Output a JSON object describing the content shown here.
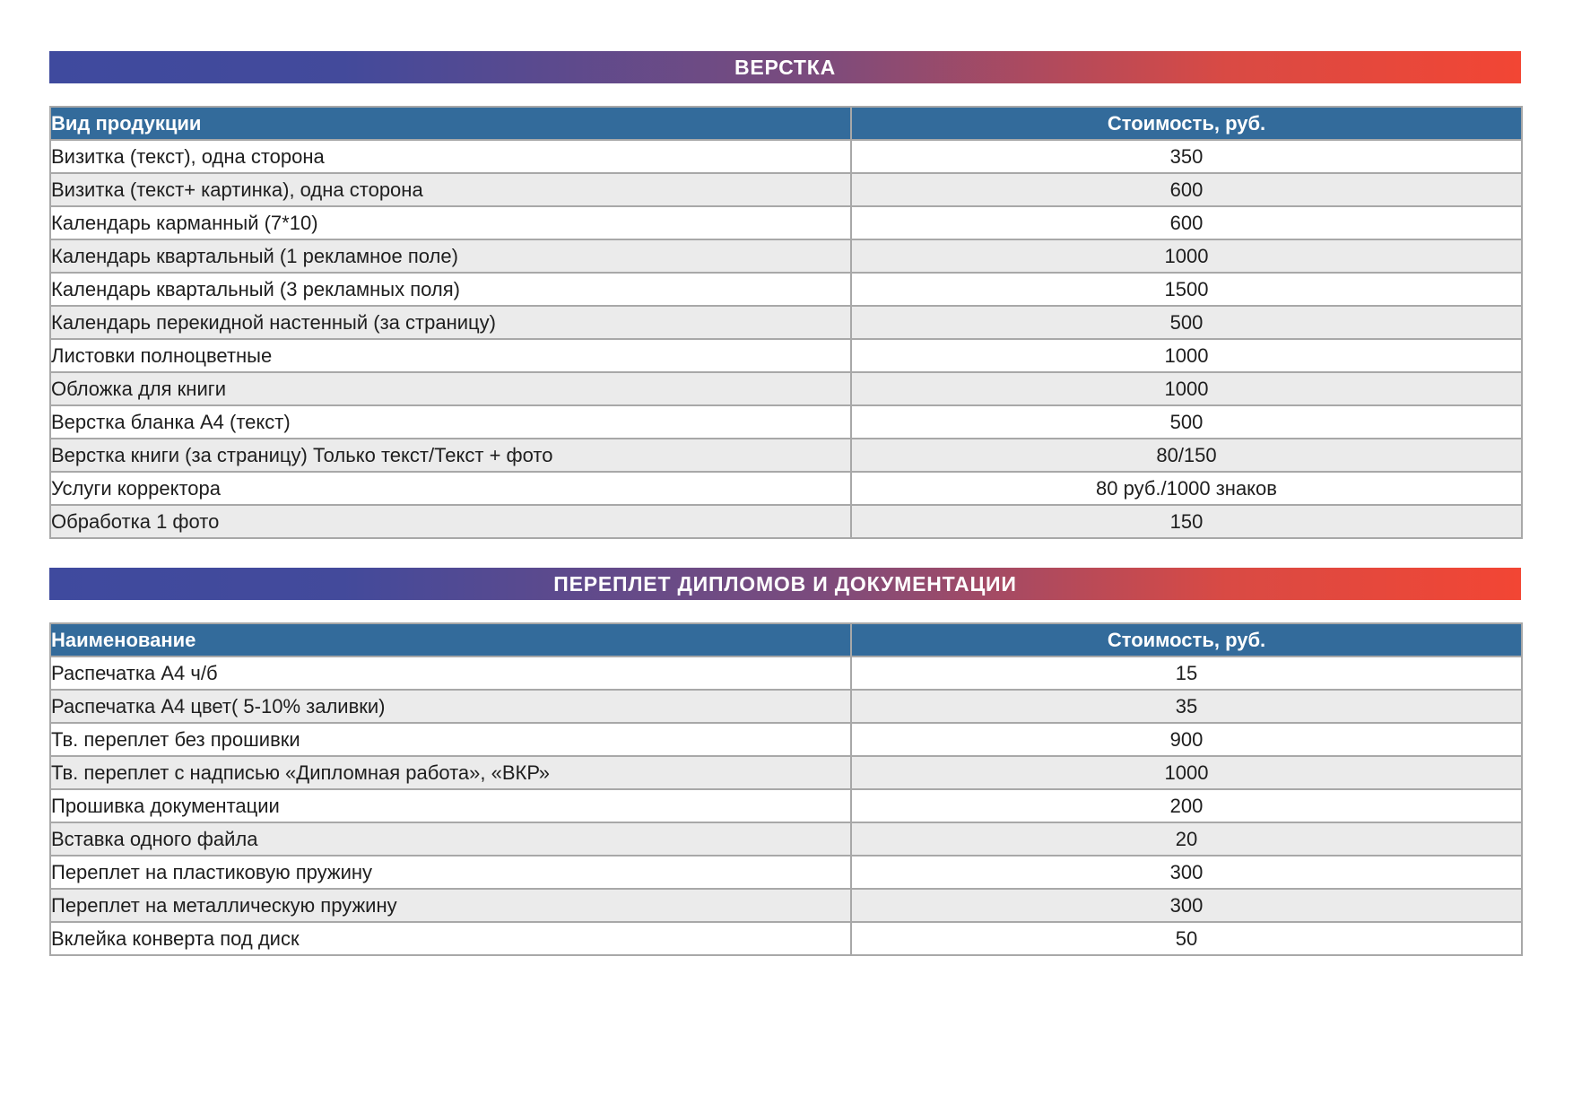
{
  "colors": {
    "banner_gradient_left": "#3f4a9e",
    "banner_gradient_mid": "#7b4b7d",
    "banner_gradient_right": "#f24634",
    "table_header_bg": "#336b9b",
    "row_bg": "#ffffff",
    "row_alt_bg": "#ebebeb",
    "border": "#a8a8a8",
    "header_text": "#ffffff",
    "body_text": "#1e1e1e"
  },
  "sections": [
    {
      "banner": "ВЕРСТКА",
      "columns": {
        "name": "Вид продукции",
        "price": "Стоимость, руб."
      },
      "rows": [
        {
          "name": "Визитка (текст), одна сторона",
          "price": "350"
        },
        {
          "name": "Визитка (текст+ картинка), одна сторона",
          "price": "600"
        },
        {
          "name": "Календарь карманный (7*10)",
          "price": "600"
        },
        {
          "name": "Календарь квартальный (1 рекламное поле)",
          "price": "1000"
        },
        {
          "name": "Календарь квартальный (3 рекламных поля)",
          "price": "1500"
        },
        {
          "name": "Календарь перекидной настенный (за страницу)",
          "price": "500"
        },
        {
          "name": "Листовки полноцветные",
          "price": "1000"
        },
        {
          "name": "Обложка для книги",
          "price": "1000"
        },
        {
          "name": "Верстка бланка А4 (текст)",
          "price": "500"
        },
        {
          "name": "Верстка книги (за страницу) Только текст/Текст + фото",
          "price": "80/150"
        },
        {
          "name": "Услуги корректора",
          "price": "80 руб./1000 знаков"
        },
        {
          "name": "Обработка 1 фото",
          "price": "150"
        }
      ]
    },
    {
      "banner": "ПЕРЕПЛЕТ ДИПЛОМОВ И ДОКУМЕНТАЦИИ",
      "columns": {
        "name": "Наименование",
        "price": "Стоимость, руб."
      },
      "rows": [
        {
          "name": "Распечатка А4 ч/б",
          "price": "15"
        },
        {
          "name": "Распечатка А4 цвет( 5-10% заливки)",
          "price": "35"
        },
        {
          "name": "Тв. переплет без прошивки",
          "price": "900"
        },
        {
          "name": "Тв. переплет с надписью «Дипломная работа», «ВКР»",
          "price": "1000"
        },
        {
          "name": "Прошивка документации",
          "price": "200"
        },
        {
          "name": "Вставка одного файла",
          "price": "20"
        },
        {
          "name": "Переплет на пластиковую пружину",
          "price": "300"
        },
        {
          "name": "Переплет на металлическую пружину",
          "price": "300"
        },
        {
          "name": "Вклейка конверта под диск",
          "price": "50"
        }
      ]
    }
  ]
}
